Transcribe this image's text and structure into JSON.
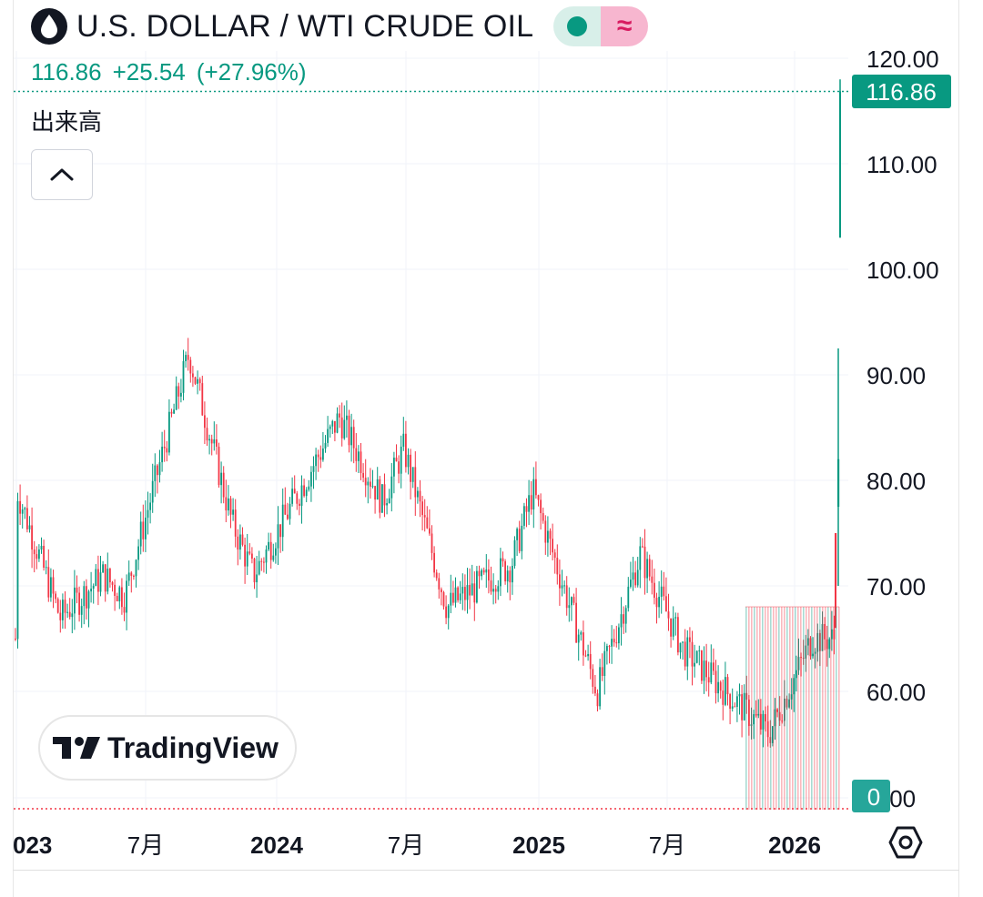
{
  "header": {
    "title": "U.S. DOLLAR / WTI CRUDE OIL",
    "icon": "oil-drop-icon",
    "badge_green": "market-open-dot",
    "badge_pink_glyph": "≈"
  },
  "quote": {
    "last": "116.86",
    "change": "+25.54",
    "change_pct": "(+27.96%)"
  },
  "volume_label": "出来高",
  "brand": "TradingView",
  "colors": {
    "up": "#089981",
    "down": "#f23645",
    "grid": "#f0f3fa",
    "text": "#131722"
  },
  "chart_data": {
    "type": "candlestick",
    "y_ticks": [
      "120.00",
      "110.00",
      "100.00",
      "90.00",
      "80.00",
      "70.00",
      "60.00"
    ],
    "y_ticks_partial": ".00",
    "x_labels": [
      "023",
      "7月",
      "2024",
      "7月",
      "2025",
      "7月",
      "2026"
    ],
    "price_label": "116.86",
    "volume_label_value": "0",
    "ylim": [
      50,
      120
    ],
    "series_key_points": [
      {
        "t": "2023-01",
        "close": 79
      },
      {
        "t": "2023-03",
        "close": 67
      },
      {
        "t": "2023-05",
        "close": 71
      },
      {
        "t": "2023-06",
        "close": 69
      },
      {
        "t": "2023-09",
        "close": 92
      },
      {
        "t": "2023-11",
        "close": 76
      },
      {
        "t": "2023-12",
        "close": 71
      },
      {
        "t": "2024-04",
        "close": 86
      },
      {
        "t": "2024-06",
        "close": 78
      },
      {
        "t": "2024-07",
        "close": 83
      },
      {
        "t": "2024-09",
        "close": 68
      },
      {
        "t": "2024-12",
        "close": 72
      },
      {
        "t": "2025-01",
        "close": 79
      },
      {
        "t": "2025-04",
        "close": 60
      },
      {
        "t": "2025-06",
        "close": 73
      },
      {
        "t": "2025-08",
        "close": 64
      },
      {
        "t": "2025-10",
        "close": 60
      },
      {
        "t": "2025-12",
        "close": 56
      },
      {
        "t": "2026-02",
        "close": 65
      },
      {
        "t": "2026-03",
        "close": 116.86
      }
    ]
  }
}
